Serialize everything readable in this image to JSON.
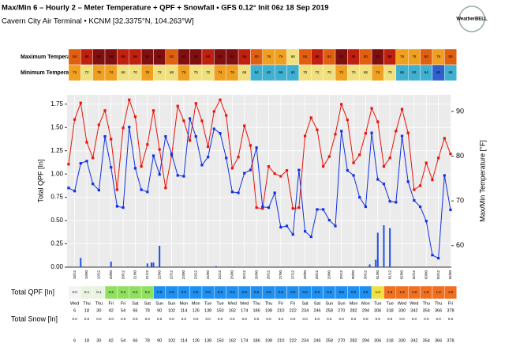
{
  "chart_data": {
    "type": "line",
    "title": "Max/Min 6 – Hourly 2 – Meter Temperature + QPF + Snowfall • GFS 0.12° Init 06z 18 Sep 2019",
    "subtitle": "Cavern City Air Terminal • KCNM [32.3375°N, 104.263°W]",
    "logo": "WeatherBELL",
    "ylabel": "Total QPF [In]",
    "y2label": "Max/Min Temperature  [°F]",
    "grid": true,
    "xlim": [
      -1.5,
      378.8
    ],
    "xticks": [
      6,
      18,
      30,
      42,
      54,
      66,
      78,
      90,
      102,
      114,
      126,
      138,
      150,
      162,
      174,
      186,
      198,
      210,
      222,
      234,
      246,
      258,
      270,
      282,
      294,
      306,
      318,
      330,
      342,
      354,
      366,
      378
    ],
    "ylim": [
      0,
      1.85
    ],
    "yticks": [
      {
        "value": 0,
        "label": "0.00"
      },
      0.25,
      {
        "value": 0.5,
        "label": "0.50"
      },
      0.75,
      {
        "value": 1,
        "label": "1.00"
      },
      1.25,
      {
        "value": 1.5,
        "label": "1.50"
      },
      1.75
    ],
    "y2lim": [
      55.2,
      93.7
    ],
    "y2ticks": [
      60,
      70,
      80,
      90
    ],
    "x": [
      0,
      6,
      12,
      18,
      24,
      30,
      36,
      42,
      48,
      54,
      60,
      66,
      72,
      78,
      84,
      90,
      96,
      102,
      108,
      114,
      120,
      126,
      132,
      138,
      144,
      150,
      156,
      162,
      168,
      174,
      180,
      186,
      192,
      198,
      204,
      210,
      216,
      222,
      228,
      234,
      240,
      246,
      252,
      258,
      264,
      270,
      276,
      282,
      288,
      294,
      300,
      306,
      312,
      318,
      324,
      330,
      336,
      342,
      348,
      354,
      360,
      366,
      372,
      378
    ],
    "series": [
      {
        "color": "#e8140c",
        "axis": "y2",
        "values": [
          78.2,
          88.2,
          91.9,
          83.1,
          79.6,
          87.0,
          90.2,
          83.8,
          72.5,
          86.3,
          92.6,
          88.8,
          77.7,
          82.6,
          90.2,
          81.5,
          72.9,
          80.1,
          91.2,
          87.9,
          83.5,
          91.8,
          87.9,
          82.1,
          90.0,
          92.6,
          89.1,
          77.3,
          79.8,
          86.8,
          82.4,
          68.5,
          68.3,
          77.7,
          76.1,
          75.5,
          76.8,
          68.3,
          68.5,
          84.5,
          88.6,
          85.9,
          77.7,
          79.9,
          84.9,
          91.6,
          88.1,
          78.5,
          80.3,
          85.1,
          90.7,
          87.7,
          77.7,
          79.6,
          85.6,
          90.5,
          85.2,
          72.5,
          73.4,
          78.5,
          74.7,
          79.6,
          84.0,
          80.5
        ]
      },
      {
        "color": "#1030e0",
        "axis": "y2",
        "values": [
          72.9,
          72.2,
          78.4,
          78.9,
          73.8,
          72.4,
          84.4,
          77.5,
          68.8,
          68.5,
          86.5,
          77.3,
          72.5,
          72.0,
          80.1,
          75.9,
          84.4,
          80.5,
          75.7,
          75.5,
          88.4,
          84.4,
          78.0,
          79.8,
          86.1,
          85.1,
          79.6,
          72.0,
          71.8,
          76.2,
          76.9,
          81.9,
          68.7,
          68.5,
          71.8,
          64.1,
          64.4,
          62.5,
          76.9,
          63.2,
          62.0,
          68.1,
          68.1,
          65.7,
          64.4,
          85.6,
          76.8,
          75.7,
          70.8,
          68.7,
          85.2,
          74.8,
          73.8,
          69.9,
          69.7,
          84.5,
          74.3,
          70.1,
          68.7,
          65.5,
          57.9,
          57.2,
          75.7,
          68.0
        ]
      }
    ],
    "qpf_bars": {
      "color": "#2050e0",
      "x": [
        12,
        42,
        78,
        82,
        84,
        90,
        146,
        298,
        304,
        306,
        312,
        318
      ],
      "values": [
        0.1,
        0.06,
        0.04,
        0.05,
        0.05,
        0.23,
        0.01,
        0.03,
        0.08,
        0.37,
        0.45,
        0.42
      ]
    },
    "dates": [
      "18/12",
      "19/00",
      "19/12",
      "20/00",
      "20/12",
      "21/00",
      "21/12",
      "22/00",
      "22/12",
      "23/00",
      "23/12",
      "24/00",
      "24/12",
      "25/00",
      "25/12",
      "26/00",
      "26/12",
      "27/00",
      "27/12",
      "28/00",
      "28/12",
      "29/00",
      "29/12",
      "30/00",
      "30/12",
      "01/00",
      "01/12",
      "02/00",
      "02/12",
      "03/00",
      "03/12",
      "04/00"
    ],
    "days": [
      "Wed",
      "Thu",
      "Thu",
      "Fri",
      "Fri",
      "Sat",
      "Sat",
      "Sun",
      "Sun",
      "Mon",
      "Mon",
      "Tue",
      "Tue",
      "Wed",
      "Wed",
      "Thu",
      "Thu",
      "Fri",
      "Fri",
      "Sat",
      "Sat",
      "Sun",
      "Sun",
      "Mon",
      "Mon",
      "Tue",
      "Tue",
      "Wed",
      "Wed",
      "Thu",
      "Thu",
      "Fri"
    ],
    "max_strip": {
      "label": "Maximum Temperature",
      "values": [
        84,
        88,
        92,
        90,
        88,
        86,
        92,
        90,
        82,
        92,
        90,
        88,
        92,
        92,
        86,
        80,
        76,
        76,
        68,
        84,
        88,
        84,
        92,
        88,
        80,
        90,
        88,
        78,
        78,
        80,
        76,
        80
      ]
    },
    "min_strip": {
      "label": "Minimum Temperature",
      "values": [
        74,
        72,
        78,
        74,
        68,
        70,
        76,
        72,
        68,
        76,
        70,
        72,
        74,
        76,
        68,
        64,
        62,
        66,
        64,
        70,
        72,
        70,
        74,
        70,
        68,
        74,
        70,
        66,
        62,
        64,
        60,
        66
      ]
    },
    "qpf_strip": {
      "label": "Total QPF [In]",
      "values": [
        0,
        0.1,
        0.1,
        0.2,
        0.2,
        0.2,
        0.2,
        0.5,
        0.5,
        0.5,
        0.5,
        0.5,
        0.5,
        0.5,
        0.5,
        0.5,
        0.5,
        0.5,
        0.5,
        0.5,
        0.5,
        0.5,
        0.5,
        0.5,
        0.5,
        1,
        1.8,
        1.8,
        1.8,
        1.8,
        1.8,
        1.8
      ],
      "value_labels": [
        "0.0",
        "0.1",
        "0.1",
        "0.2",
        "0.2",
        "0.2",
        "0.2",
        "0.5",
        "0.5",
        "0.5",
        "0.5",
        "0.5",
        "0.5",
        "0.5",
        "0.5",
        "0.5",
        "0.5",
        "0.5",
        "0.5",
        "0.5",
        "0.5",
        "0.5",
        "0.5",
        "0.5",
        "0.5",
        "1.0",
        "1.8",
        "1.8",
        "1.8",
        "1.8",
        "1.8",
        "1.8"
      ]
    },
    "snow_strip": {
      "label": "Total Snow [In]",
      "values": [
        0,
        0,
        0,
        0,
        0,
        0,
        0,
        0,
        0,
        0,
        0,
        0,
        0,
        0,
        0,
        0,
        0,
        0,
        0,
        0,
        0,
        0,
        0,
        0,
        0,
        0,
        0,
        0,
        0,
        0,
        0,
        0
      ],
      "value_labels": [
        "0.0",
        "0.0",
        "0.0",
        "0.0",
        "0.0",
        "0.0",
        "0.0",
        "0.0",
        "0.0",
        "0.0",
        "0.0",
        "0.0",
        "0.0",
        "0.0",
        "0.0",
        "0.0",
        "0.0",
        "0.0",
        "0.0",
        "0.0",
        "0.0",
        "0.0",
        "0.0",
        "0.0",
        "0.0",
        "0.0",
        "0.0",
        "0.0",
        "0.0",
        "0.0",
        "0.0",
        "0.0"
      ]
    }
  }
}
